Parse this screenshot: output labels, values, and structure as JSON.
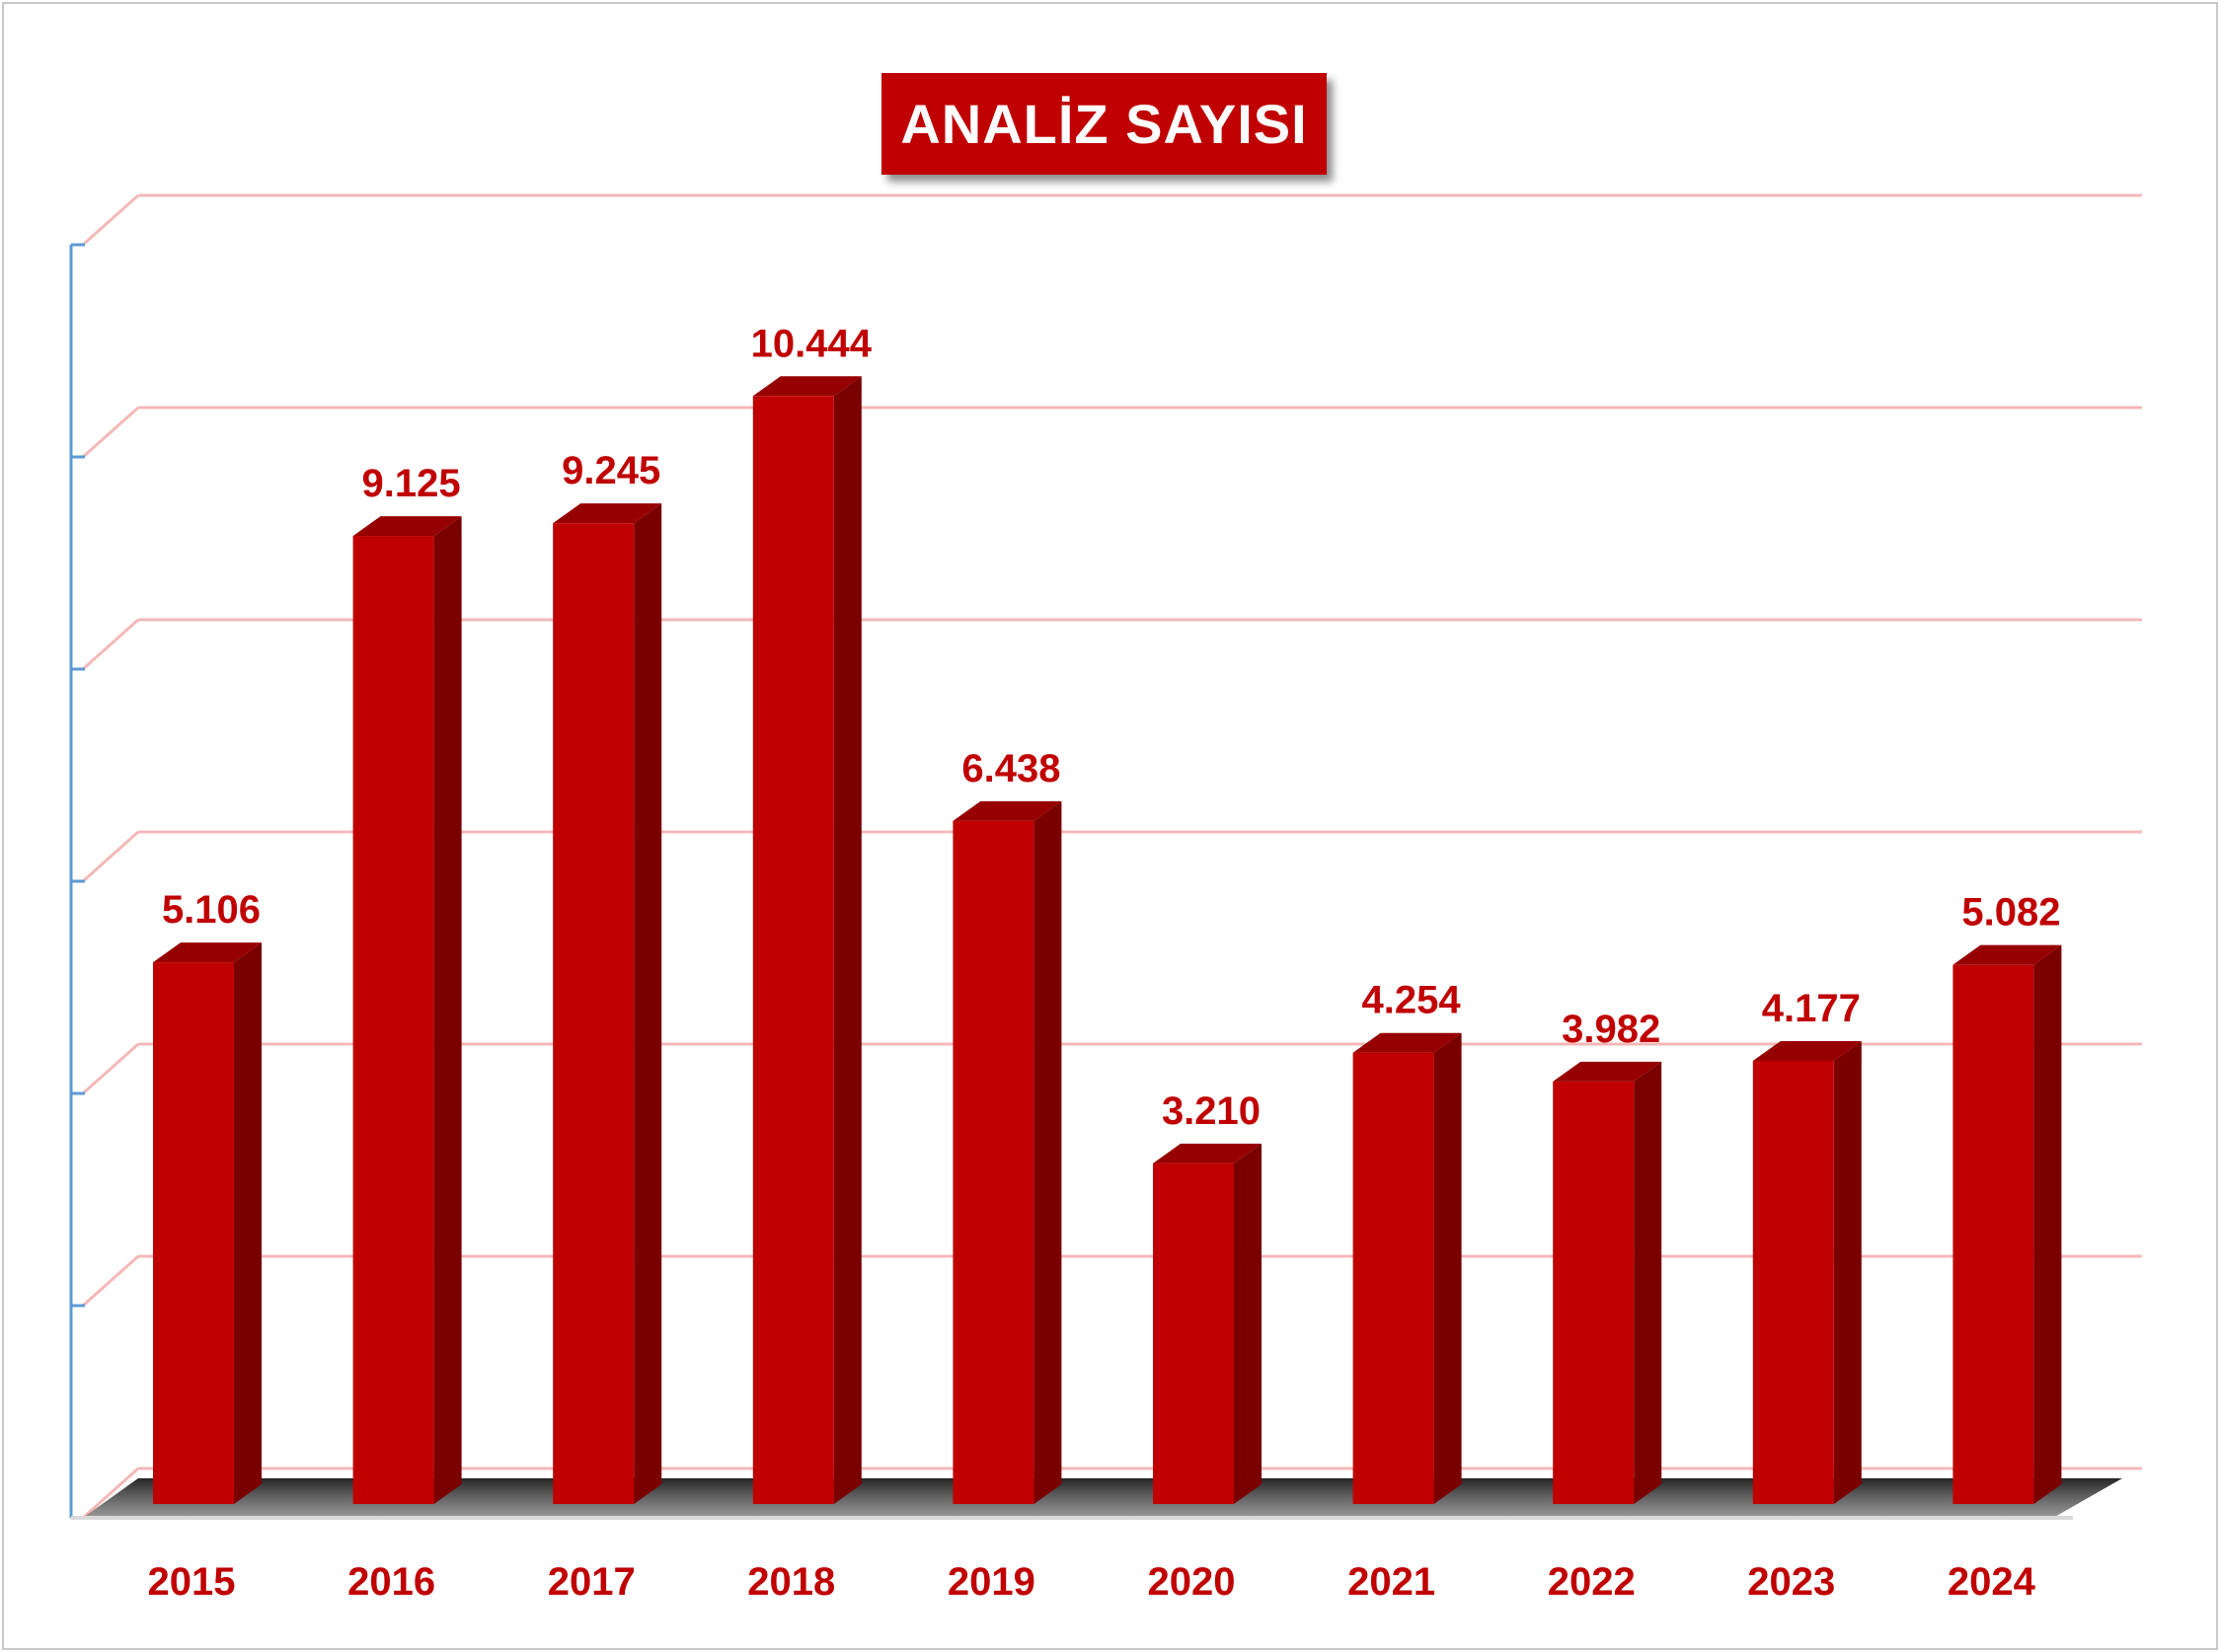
{
  "chart_data": {
    "type": "bar",
    "title": "ANALİZ SAYISI",
    "categories": [
      "2015",
      "2016",
      "2017",
      "2018",
      "2019",
      "2020",
      "2021",
      "2022",
      "2023",
      "2024"
    ],
    "values": [
      5106,
      9125,
      9245,
      10444,
      6438,
      3210,
      4254,
      3982,
      4177,
      5082
    ],
    "value_labels": [
      "5.106",
      "9.125",
      "9.245",
      "10.444",
      "6.438",
      "3.210",
      "4.254",
      "3.982",
      "4.177",
      "5.082"
    ],
    "ylim": [
      0,
      12000
    ],
    "grid": true,
    "xlabel": "",
    "ylabel": "",
    "colors": {
      "bar_front": "#c00000",
      "bar_side": "#7a0000",
      "bar_top": "#960000",
      "labels": "#c00000",
      "gridlines": "#f4b8b8",
      "axis": "#5b9bd5"
    }
  }
}
